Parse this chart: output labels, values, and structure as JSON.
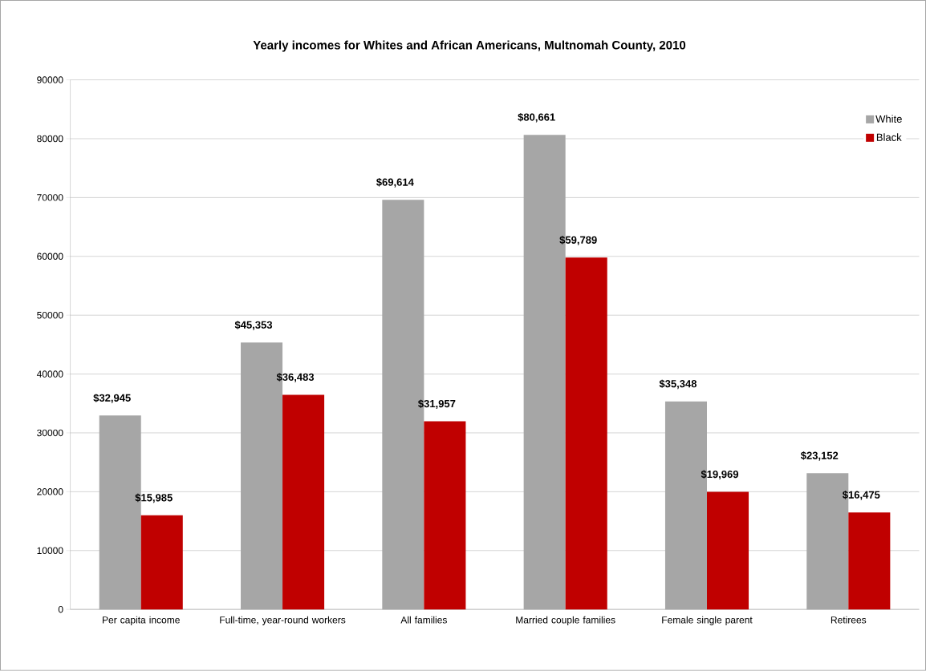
{
  "chart_data": {
    "type": "bar",
    "title": "Yearly incomes for Whites and African Americans, Multnomah County, 2010",
    "categories": [
      "Per capita income",
      "Full-time, year-round workers",
      "All families",
      "Married couple families",
      "Female single parent",
      "Retirees"
    ],
    "series": [
      {
        "name": "White",
        "color": "#a6a6a6",
        "values": [
          32945,
          45353,
          69614,
          80661,
          35348,
          23152
        ],
        "value_labels": [
          "$32,945",
          "$45,353",
          "$69,614",
          "$80,661",
          "$35,348",
          "$23,152"
        ]
      },
      {
        "name": "Black",
        "color": "#c00000",
        "values": [
          15985,
          36483,
          31957,
          59789,
          19969,
          16475
        ],
        "value_labels": [
          "$15,985",
          "$36,483",
          "$31,957",
          "$59,789",
          "$19,969",
          "$16,475"
        ]
      }
    ],
    "ylim": [
      0,
      90000
    ],
    "yticks": [
      0,
      10000,
      20000,
      30000,
      40000,
      50000,
      60000,
      70000,
      80000,
      90000
    ],
    "grid": "y",
    "legend": "top right"
  }
}
